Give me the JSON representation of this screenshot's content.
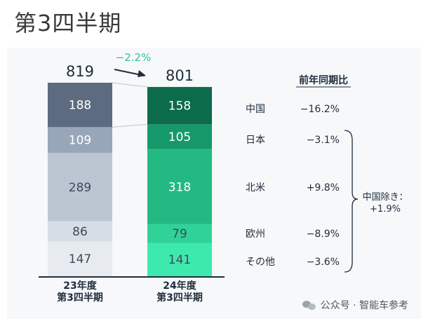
{
  "page_title": "第3四半期",
  "legend_header": "前年同期比",
  "change_label": "−2.2%",
  "chart_data": {
    "type": "bar",
    "stacked": true,
    "categories": [
      "23年度\n第3四半期",
      "24年度\n第3四半期"
    ],
    "totals": [
      819,
      801
    ],
    "series": [
      {
        "name": "中国",
        "values": [
          188,
          158
        ],
        "yoy": "−16.2%"
      },
      {
        "name": "日本",
        "values": [
          109,
          105
        ],
        "yoy": "−3.1%"
      },
      {
        "name": "北米",
        "values": [
          289,
          318
        ],
        "yoy": "+9.8%"
      },
      {
        "name": "欧州",
        "values": [
          86,
          79
        ],
        "yoy": "−8.9%"
      },
      {
        "name": "その他",
        "values": [
          147,
          141
        ],
        "yoy": "−3.6%"
      }
    ],
    "bracket_note": [
      "中国除き：",
      "+1.9%"
    ],
    "colors": {
      "bar1": [
        "#5d6b80",
        "#98a6ba",
        "#bcc6d3",
        "#d7dde6",
        "#e7ebf0"
      ],
      "bar2": [
        "#0b6b4a",
        "#15996a",
        "#24b983",
        "#2fd398",
        "#3ee9ae"
      ],
      "change": "#2dbfa5",
      "axis": "#1f2d3d"
    }
  },
  "watermark": "公众号 · 智能车参考"
}
